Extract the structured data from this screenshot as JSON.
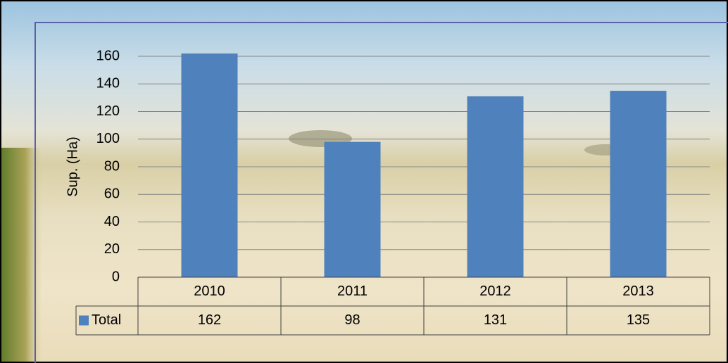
{
  "chart_data": {
    "type": "bar",
    "y_label": "Sup. (Ha)",
    "categories": [
      "2010",
      "2011",
      "2012",
      "2013"
    ],
    "series": [
      {
        "name": "Total",
        "color": "#4f81bd",
        "values": [
          162,
          98,
          131,
          135
        ]
      }
    ],
    "ylim": [
      0,
      160
    ],
    "yticks": [
      0,
      20,
      40,
      60,
      80,
      100,
      120,
      140,
      160
    ],
    "grid": true,
    "data_table": true
  }
}
